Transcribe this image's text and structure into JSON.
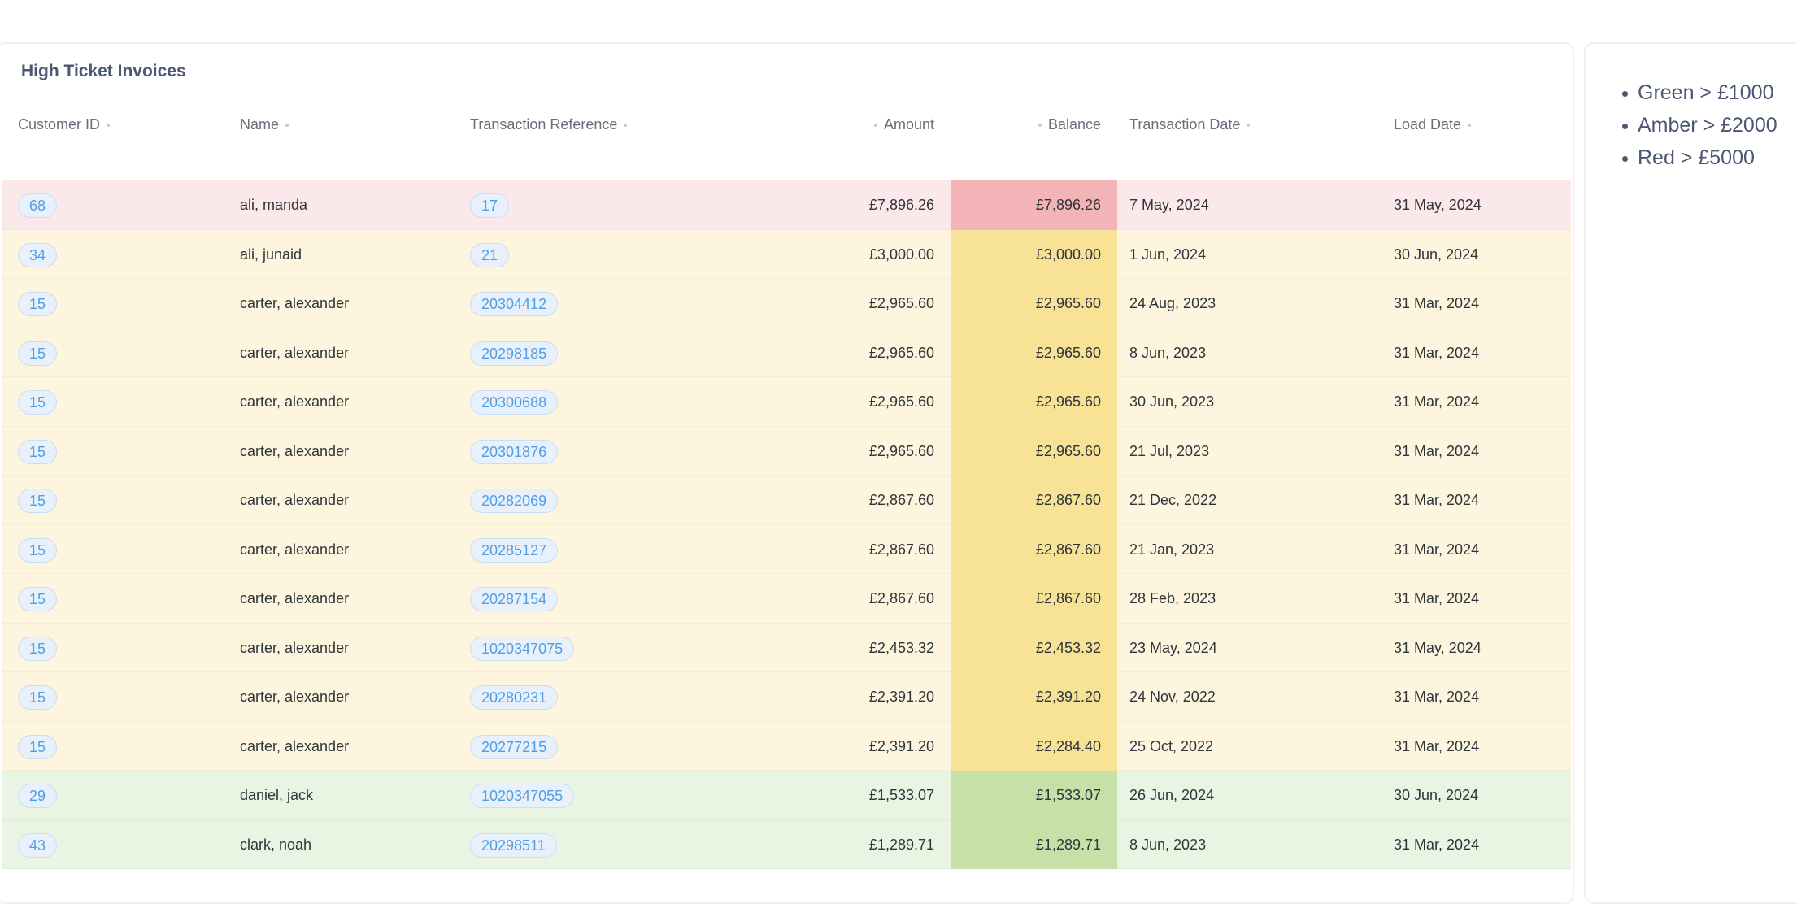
{
  "table": {
    "title": "High Ticket Invoices",
    "columns": [
      "Customer ID",
      "Name",
      "Transaction Reference",
      "Amount",
      "Balance",
      "Transaction Date",
      "Load Date"
    ],
    "rows": [
      {
        "customer_id": "68",
        "name": "ali, manda",
        "ref": "17",
        "amount": "£7,896.26",
        "balance": "£7,896.26",
        "txn_date": "7 May, 2024",
        "load_date": "31 May, 2024",
        "row_level": "red",
        "balance_level": "red"
      },
      {
        "customer_id": "34",
        "name": "ali, junaid",
        "ref": "21",
        "amount": "£3,000.00",
        "balance": "£3,000.00",
        "txn_date": "1 Jun, 2024",
        "load_date": "30 Jun, 2024",
        "row_level": "amber",
        "balance_level": "amber"
      },
      {
        "customer_id": "15",
        "name": "carter, alexander",
        "ref": "20304412",
        "amount": "£2,965.60",
        "balance": "£2,965.60",
        "txn_date": "24 Aug, 2023",
        "load_date": "31 Mar, 2024",
        "row_level": "amber",
        "balance_level": "amber"
      },
      {
        "customer_id": "15",
        "name": "carter, alexander",
        "ref": "20298185",
        "amount": "£2,965.60",
        "balance": "£2,965.60",
        "txn_date": "8 Jun, 2023",
        "load_date": "31 Mar, 2024",
        "row_level": "amber",
        "balance_level": "amber"
      },
      {
        "customer_id": "15",
        "name": "carter, alexander",
        "ref": "20300688",
        "amount": "£2,965.60",
        "balance": "£2,965.60",
        "txn_date": "30 Jun, 2023",
        "load_date": "31 Mar, 2024",
        "row_level": "amber",
        "balance_level": "amber"
      },
      {
        "customer_id": "15",
        "name": "carter, alexander",
        "ref": "20301876",
        "amount": "£2,965.60",
        "balance": "£2,965.60",
        "txn_date": "21 Jul, 2023",
        "load_date": "31 Mar, 2024",
        "row_level": "amber",
        "balance_level": "amber"
      },
      {
        "customer_id": "15",
        "name": "carter, alexander",
        "ref": "20282069",
        "amount": "£2,867.60",
        "balance": "£2,867.60",
        "txn_date": "21 Dec, 2022",
        "load_date": "31 Mar, 2024",
        "row_level": "amber",
        "balance_level": "amber"
      },
      {
        "customer_id": "15",
        "name": "carter, alexander",
        "ref": "20285127",
        "amount": "£2,867.60",
        "balance": "£2,867.60",
        "txn_date": "21 Jan, 2023",
        "load_date": "31 Mar, 2024",
        "row_level": "amber",
        "balance_level": "amber"
      },
      {
        "customer_id": "15",
        "name": "carter, alexander",
        "ref": "20287154",
        "amount": "£2,867.60",
        "balance": "£2,867.60",
        "txn_date": "28 Feb, 2023",
        "load_date": "31 Mar, 2024",
        "row_level": "amber",
        "balance_level": "amber"
      },
      {
        "customer_id": "15",
        "name": "carter, alexander",
        "ref": "1020347075",
        "amount": "£2,453.32",
        "balance": "£2,453.32",
        "txn_date": "23 May, 2024",
        "load_date": "31 May, 2024",
        "row_level": "amber",
        "balance_level": "amber"
      },
      {
        "customer_id": "15",
        "name": "carter, alexander",
        "ref": "20280231",
        "amount": "£2,391.20",
        "balance": "£2,391.20",
        "txn_date": "24 Nov, 2022",
        "load_date": "31 Mar, 2024",
        "row_level": "amber",
        "balance_level": "amber"
      },
      {
        "customer_id": "15",
        "name": "carter, alexander",
        "ref": "20277215",
        "amount": "£2,391.20",
        "balance": "£2,284.40",
        "txn_date": "25 Oct, 2022",
        "load_date": "31 Mar, 2024",
        "row_level": "amber",
        "balance_level": "amber"
      },
      {
        "customer_id": "29",
        "name": "daniel, jack",
        "ref": "1020347055",
        "amount": "£1,533.07",
        "balance": "£1,533.07",
        "txn_date": "26 Jun, 2024",
        "load_date": "30 Jun, 2024",
        "row_level": "green",
        "balance_level": "green"
      },
      {
        "customer_id": "43",
        "name": "clark, noah",
        "ref": "20298511",
        "amount": "£1,289.71",
        "balance": "£1,289.71",
        "txn_date": "8 Jun, 2023",
        "load_date": "31 Mar, 2024",
        "row_level": "green",
        "balance_level": "green"
      }
    ]
  },
  "notes": {
    "items": [
      "Green > £1000",
      "Amber > £2000",
      "Red > £5000"
    ]
  },
  "colors": {
    "row_red": "#fbe8ea",
    "row_amber": "#fdf5dd",
    "row_green": "#eaf4e3",
    "balance_red": "#f3b4b7",
    "balance_amber": "#f7e295",
    "balance_green": "#c6e0a8",
    "link_blue": "#509ee3"
  }
}
